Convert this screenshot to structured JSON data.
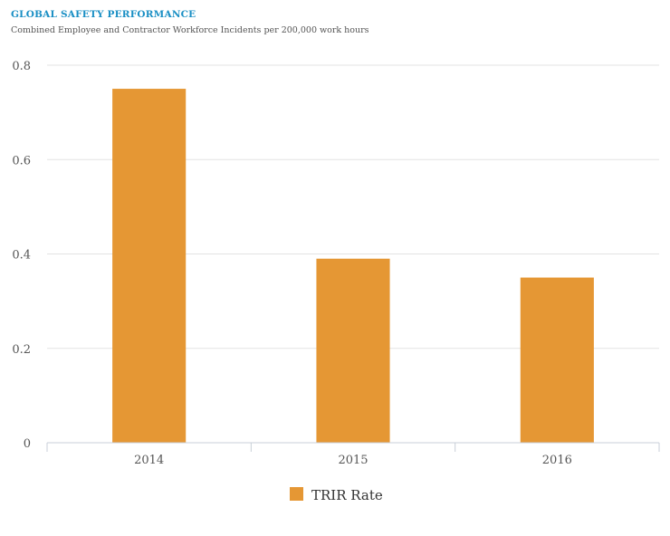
{
  "chart_data": {
    "type": "bar",
    "title": "GLOBAL SAFETY PERFORMANCE",
    "subtitle": "Combined Employee and Contractor Workforce Incidents per 200,000 work hours",
    "categories": [
      "2014",
      "2015",
      "2016"
    ],
    "series": [
      {
        "name": "TRIR Rate",
        "values": [
          0.75,
          0.39,
          0.35
        ],
        "color": "#e59734"
      }
    ],
    "ylim": [
      0,
      0.8
    ],
    "yticks": [
      "0",
      "0.2",
      "0.4",
      "0.6",
      "0.8"
    ],
    "xlabel": "",
    "ylabel": "",
    "grid": true,
    "legend_position": "bottom-center"
  }
}
